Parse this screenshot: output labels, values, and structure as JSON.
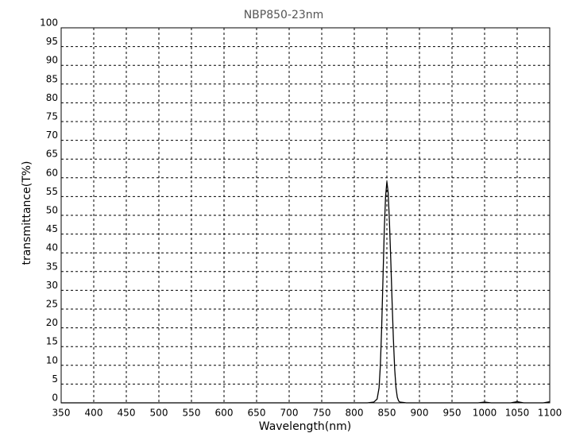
{
  "chart_data": {
    "type": "line",
    "title": "NBP850-23nm",
    "x_label": "Wavelength(nm)",
    "y_label": "transmittance(T%)",
    "x": [
      350,
      400,
      450,
      500,
      550,
      600,
      650,
      700,
      750,
      800,
      820,
      830,
      835,
      838,
      840,
      842,
      844,
      846,
      848,
      850,
      852,
      854,
      856,
      858,
      860,
      862,
      864,
      866,
      868,
      870,
      880,
      900,
      950,
      990,
      1000,
      1010,
      1040,
      1050,
      1060,
      1090,
      1100
    ],
    "series": [
      {
        "name": "NBP850-23nm",
        "color": "#000000",
        "values": [
          0,
          0,
          0,
          0,
          0,
          0,
          0,
          0,
          0,
          0,
          0,
          0.2,
          1,
          4,
          10,
          20,
          33,
          46,
          55,
          59,
          56,
          48,
          38,
          27,
          17,
          9,
          4,
          1.5,
          0.5,
          0.2,
          0,
          0,
          0,
          0,
          0.2,
          0,
          0,
          0.3,
          0,
          0,
          0.3
        ]
      }
    ],
    "xlim": [
      350,
      1100
    ],
    "xticks": [
      350,
      400,
      450,
      500,
      550,
      600,
      650,
      700,
      750,
      800,
      850,
      900,
      950,
      1000,
      1050,
      1100
    ],
    "ylim": [
      0,
      100
    ],
    "yticks": [
      0,
      5,
      10,
      15,
      20,
      25,
      30,
      35,
      40,
      45,
      50,
      55,
      60,
      65,
      70,
      75,
      80,
      85,
      90,
      95,
      100
    ],
    "grid": true
  }
}
